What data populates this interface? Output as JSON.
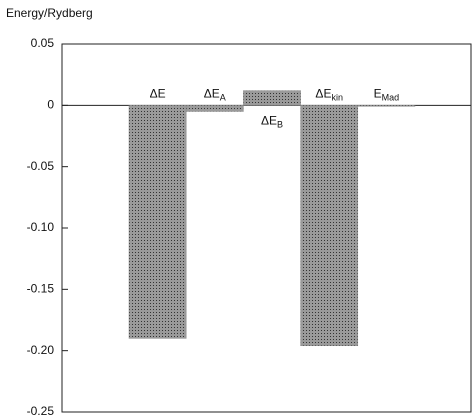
{
  "chart_data": {
    "type": "bar",
    "y_label": "Energy/Rydberg",
    "categories": [
      "ΔE",
      "ΔEA",
      "ΔEB",
      "ΔEkin",
      "EMad"
    ],
    "values": [
      -0.19,
      -0.005,
      0.012,
      -0.196,
      0
    ],
    "color": "#8c8c8c",
    "ylim": [
      -0.25,
      0.05
    ],
    "yticks": [
      0.05,
      0,
      -0.05,
      {
        "value": -0.1,
        "label": "-0.10"
      },
      -0.15,
      {
        "value": -0.2,
        "label": "-0.20"
      },
      -0.25
    ],
    "grid": false
  }
}
